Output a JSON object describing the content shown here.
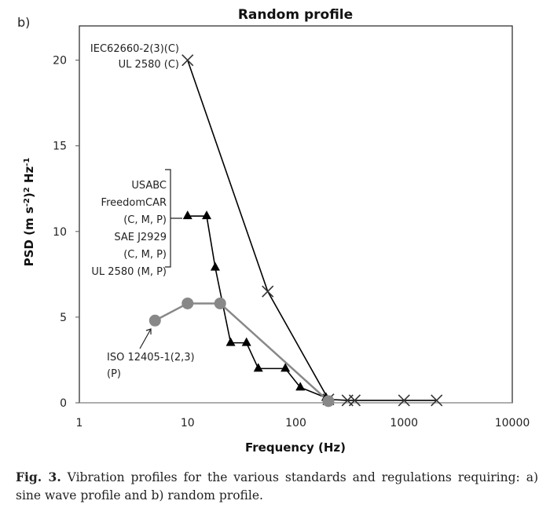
{
  "chart_data": {
    "type": "line",
    "panel_label": "b)",
    "title": "Random profile",
    "xlabel": "Frequency (Hz)",
    "ylabel": "PSD (m s-2)2 Hz-1",
    "xscale": "log",
    "xlim": [
      1,
      10000
    ],
    "ylim": [
      0,
      22
    ],
    "xticks": [
      "1",
      "10",
      "100",
      "1000",
      "10000"
    ],
    "xtick_values": [
      1,
      10,
      100,
      1000,
      10000
    ],
    "yticks": [
      "0",
      "5",
      "10",
      "15",
      "20"
    ],
    "ytick_values": [
      0,
      5,
      10,
      15,
      20
    ],
    "grid": false,
    "series": [
      {
        "name": "IEC62660-2(3)(C) / UL 2580 (C)",
        "marker": "cross",
        "color": "#000000",
        "x": [
          10,
          55,
          200,
          300,
          350,
          1000,
          2000
        ],
        "y": [
          20,
          6.5,
          0.2,
          0.14,
          0.14,
          0.14,
          0.14
        ]
      },
      {
        "name": "USABC FreedomCAR (C, M, P) / SAE J2929 (C, M, P) / UL 2580 (M, P)",
        "marker": "triangle",
        "color": "#000000",
        "x": [
          10,
          15,
          18,
          25,
          35,
          45,
          80,
          110,
          190
        ],
        "y": [
          10.9,
          10.9,
          7.9,
          3.5,
          3.5,
          2.0,
          2.0,
          0.9,
          0.3
        ]
      },
      {
        "name": "ISO 12405-1(2,3) (P)",
        "marker": "circle",
        "color": "#888888",
        "x": [
          5,
          10,
          20,
          200
        ],
        "y": [
          4.8,
          5.8,
          5.8,
          0.1
        ]
      }
    ],
    "annotations": {
      "cross": [
        "IEC62660-2(3)(C)",
        "UL 2580 (C)"
      ],
      "triangle": [
        "USABC",
        "FreedomCAR",
        "(C, M, P)",
        "SAE J2929",
        "(C, M, P)",
        "UL 2580 (M, P)"
      ],
      "circle": [
        "ISO 12405-1(2,3)",
        "(P)"
      ]
    }
  },
  "caption": {
    "label": "Fig. 3.",
    "text": " Vibration profiles for the various standards and regulations requiring: a) sine wave profile and b) random profile."
  }
}
